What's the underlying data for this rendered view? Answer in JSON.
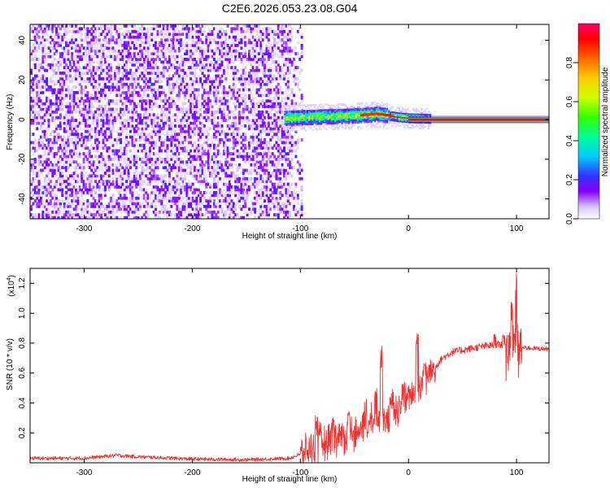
{
  "title": "C2E6.2026.053.23.08.G04",
  "chart_data": [
    {
      "type": "heatmap",
      "xlabel": "Height of straight line (km)",
      "ylabel": "Frequency (Hz)",
      "xlim": [
        -350,
        130
      ],
      "ylim": [
        -50,
        48
      ],
      "x_ticks": [
        -300,
        -200,
        -100,
        0,
        100
      ],
      "y_ticks": [
        -40,
        -20,
        0,
        20,
        40
      ],
      "colorbar": {
        "label": "Normalized spectral amplitude",
        "range": [
          0,
          1
        ],
        "ticks": [
          0.0,
          0.2,
          0.4,
          0.6,
          0.8
        ]
      },
      "regions": [
        {
          "name": "noise",
          "x": [
            -350,
            -98
          ],
          "y": [
            -50,
            48
          ],
          "amplitude_range": [
            0.0,
            0.2
          ]
        },
        {
          "name": "signal",
          "x": [
            -115,
            20
          ],
          "y": [
            -5,
            6
          ],
          "amplitude_range": [
            0.1,
            1.0
          ]
        },
        {
          "name": "carrier",
          "x": [
            0,
            130
          ],
          "y": [
            -1,
            1
          ],
          "amplitude_range": [
            0.9,
            1.0
          ]
        }
      ],
      "signal_center_hz": [
        [
          -115,
          0.5
        ],
        [
          -100,
          0.8
        ],
        [
          -80,
          1.2
        ],
        [
          -60,
          1.5
        ],
        [
          -40,
          2.0
        ],
        [
          -30,
          2.5
        ],
        [
          -20,
          1.8
        ],
        [
          -10,
          1.0
        ],
        [
          0,
          0.5
        ],
        [
          20,
          0.2
        ],
        [
          60,
          0.0
        ],
        [
          100,
          0.0
        ],
        [
          130,
          0.0
        ]
      ]
    },
    {
      "type": "line",
      "xlabel": "Height of straight line (km)",
      "ylabel": "SNR (10 * v/v)",
      "yscale_note": "(x10",
      "yscale_exp": "4",
      "xlim": [
        -350,
        130
      ],
      "ylim": [
        0,
        1.3
      ],
      "x_ticks": [
        -300,
        -200,
        -100,
        0,
        100
      ],
      "y_ticks": [
        0.2,
        0.4,
        0.6,
        0.8,
        1.0,
        1.2
      ],
      "series": [
        {
          "color": "#ee3333",
          "envelope": [
            [
              -350,
              0.03
            ],
            [
              -300,
              0.03
            ],
            [
              -270,
              0.05
            ],
            [
              -250,
              0.04
            ],
            [
              -200,
              0.025
            ],
            [
              -150,
              0.02
            ],
            [
              -110,
              0.03
            ],
            [
              -95,
              0.07
            ],
            [
              -85,
              0.12
            ],
            [
              -75,
              0.16
            ],
            [
              -60,
              0.18
            ],
            [
              -50,
              0.2
            ],
            [
              -40,
              0.24
            ],
            [
              -30,
              0.28
            ],
            [
              -20,
              0.32
            ],
            [
              -10,
              0.37
            ],
            [
              0,
              0.43
            ],
            [
              10,
              0.5
            ],
            [
              20,
              0.6
            ],
            [
              30,
              0.69
            ],
            [
              40,
              0.74
            ],
            [
              55,
              0.76
            ],
            [
              70,
              0.78
            ],
            [
              85,
              0.79
            ],
            [
              97,
              0.8
            ],
            [
              105,
              0.77
            ],
            [
              130,
              0.76
            ]
          ],
          "spikes": [
            [
              -85,
              0.33
            ],
            [
              -70,
              0.3
            ],
            [
              -55,
              0.35
            ],
            [
              -40,
              0.44
            ],
            [
              -30,
              0.5
            ],
            [
              -25,
              0.78
            ],
            [
              -15,
              0.5
            ],
            [
              -5,
              0.55
            ],
            [
              8,
              0.9
            ],
            [
              12,
              0.3
            ],
            [
              15,
              0.68
            ],
            [
              80,
              0.86
            ],
            [
              88,
              0.86
            ],
            [
              96,
              1.08
            ],
            [
              97,
              0.37
            ],
            [
              99,
              1.28
            ],
            [
              102,
              0.65
            ]
          ]
        }
      ]
    }
  ]
}
